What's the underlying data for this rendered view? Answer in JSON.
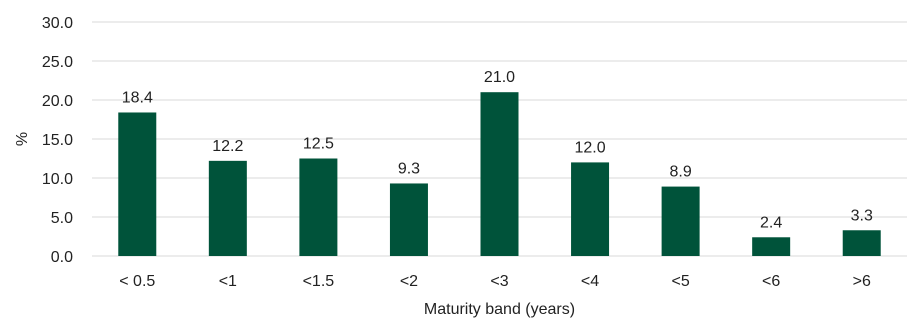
{
  "chart_data": {
    "type": "bar",
    "title": "",
    "xlabel": "Maturity band (years)",
    "ylabel": "%",
    "categories": [
      "< 0.5",
      "<1",
      "<1.5",
      "<2",
      "<3",
      "<4",
      "<5",
      "<6",
      ">6"
    ],
    "values": [
      18.4,
      12.2,
      12.5,
      9.3,
      21.0,
      12.0,
      8.9,
      2.4,
      3.3
    ],
    "value_labels": [
      "18.4",
      "12.2",
      "12.5",
      "9.3",
      "21.0",
      "12.0",
      "8.9",
      "2.4",
      "3.3"
    ],
    "ylim": [
      0,
      30
    ],
    "yticks": [
      0,
      5,
      10,
      15,
      20,
      25,
      30
    ],
    "ytick_labels": [
      "0.0",
      "5.0",
      "10.0",
      "15.0",
      "20.0",
      "25.0",
      "30.0"
    ],
    "grid": true,
    "legend": "none",
    "bar_color": "#00533a",
    "grid_color": "#d9d9d9"
  }
}
